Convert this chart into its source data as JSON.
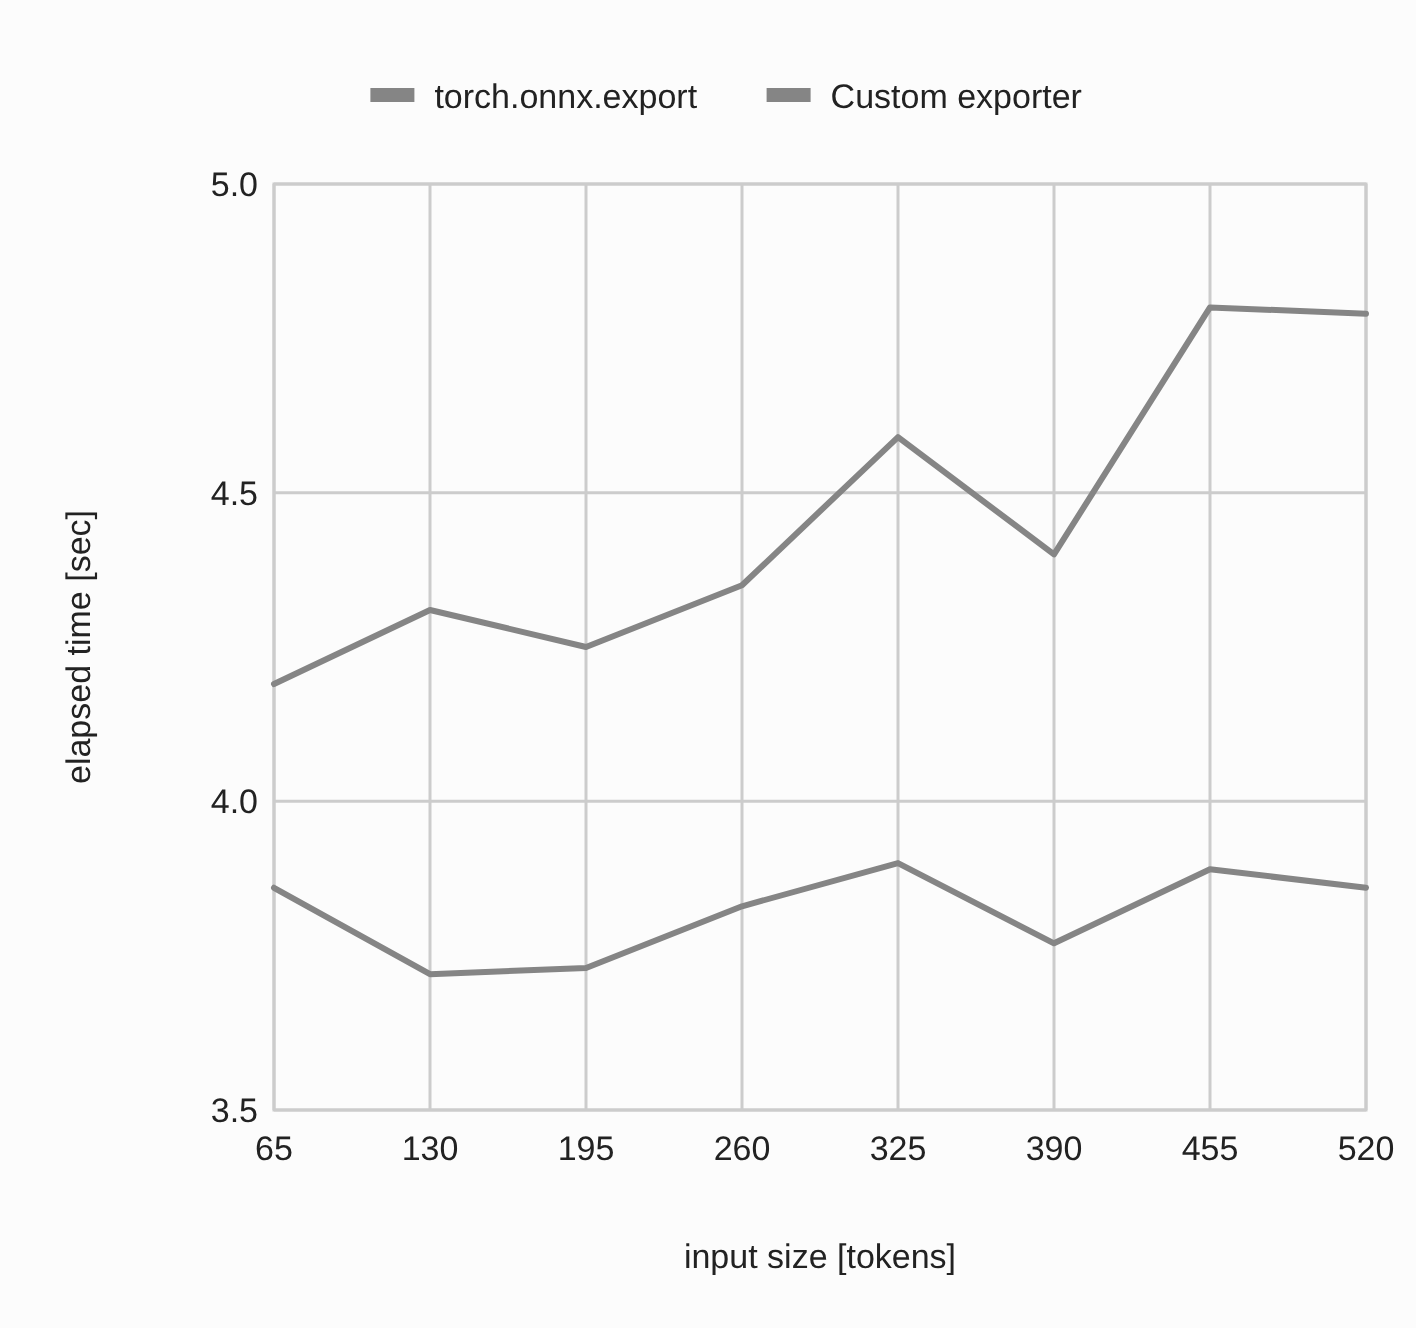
{
  "chart_data": {
    "type": "line",
    "xlabel": "input size [tokens]",
    "ylabel": "elapsed time [sec]",
    "x": [
      65,
      130,
      195,
      260,
      325,
      390,
      455,
      520
    ],
    "xlim": [
      65,
      520
    ],
    "xticks": [
      65,
      130,
      195,
      260,
      325,
      390,
      455,
      520
    ],
    "ylim": [
      3.5,
      5.0
    ],
    "yticks": [
      {
        "value": 3.5,
        "label": "3.5"
      },
      {
        "value": 4.0,
        "label": "4.0"
      },
      {
        "value": 4.5,
        "label": "4.5"
      },
      {
        "value": 5.0,
        "label": "5.0"
      }
    ],
    "series": [
      {
        "name": "torch.onnx.export",
        "color": "#858585",
        "values": [
          4.19,
          4.31,
          4.25,
          4.35,
          4.59,
          4.4,
          4.8,
          4.79
        ]
      },
      {
        "name": "Custom exporter",
        "color": "#858585",
        "values": [
          3.86,
          3.72,
          3.73,
          3.83,
          3.9,
          3.77,
          3.89,
          3.86
        ]
      }
    ],
    "grid": true,
    "legend": "top",
    "marker": "none",
    "line_style": "solid"
  }
}
